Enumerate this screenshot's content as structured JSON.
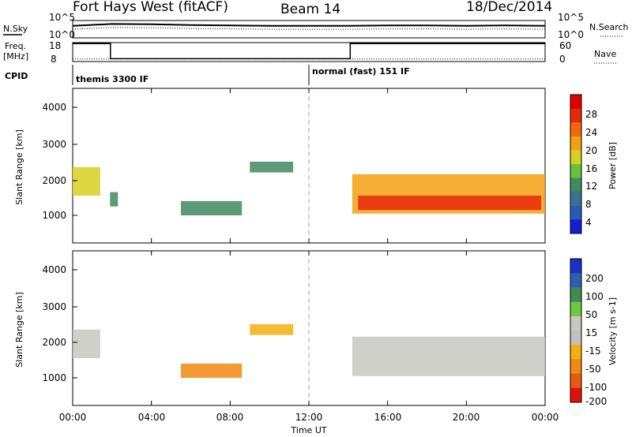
{
  "header": {
    "station": "Fort Hays West (fitACF)",
    "beam": "Beam 14",
    "date": "18/Dec/2014"
  },
  "noise_panel": {
    "left_label": "N.Sky",
    "left_ticks": [
      "10^5",
      "10^0"
    ],
    "right_ticks": [
      "10^5",
      "10^0"
    ],
    "right_label": "N.Search"
  },
  "freq_panel": {
    "left_label_1": "Freq.",
    "left_label_2": "[MHz]",
    "left_ticks": [
      "18",
      "8"
    ],
    "right_ticks": [
      "60",
      "0"
    ],
    "right_label": "Nave"
  },
  "cpid": {
    "label": "CPID",
    "programs": [
      {
        "name": "themis 3300 IF",
        "start": 0
      },
      {
        "name": "normal (fast) 151 IF",
        "start": 12
      }
    ]
  },
  "colors": {
    "power_scale": [
      "#1020d0",
      "#2a5ab8",
      "#3a7090",
      "#3f8a5e",
      "#67c23a",
      "#d7d020",
      "#f4a012",
      "#f06a0c",
      "#e8280a",
      "#e00000"
    ],
    "velocity_scale": [
      "#1a2fc4",
      "#2f5fb0",
      "#3f8a55",
      "#6cc840",
      "#c8c8c0",
      "#c0c0bc",
      "#f5b010",
      "#f08a10",
      "#e85a10",
      "#e01010"
    ],
    "ground_scatter": "#c8c8c2"
  },
  "chart_data": [
    {
      "type": "line",
      "title": "N.Sky / N.Search",
      "x": [
        0,
        2,
        4,
        6,
        8,
        10,
        12,
        14,
        16,
        18,
        20,
        22,
        24
      ],
      "series": [
        {
          "name": "N.Sky",
          "values": [
            3000,
            10000,
            8000,
            5000,
            4000,
            3000,
            3000,
            3000,
            4000,
            4000,
            3000,
            4000,
            3000
          ]
        },
        {
          "name": "N.Search",
          "values": [
            300,
            1000,
            800,
            500,
            400,
            300,
            300,
            300,
            400,
            400,
            300,
            400,
            300
          ]
        }
      ],
      "ylabel": "N.Sky",
      "y2label": "N.Search",
      "ylim": [
        1,
        100000
      ],
      "xlim": [
        0,
        24
      ]
    },
    {
      "type": "line",
      "title": "Freq. / Nave",
      "series": [
        {
          "name": "Freq.",
          "x": [
            0,
            1.92,
            1.92,
            14.1,
            14.1,
            24
          ],
          "values": [
            17.5,
            17.5,
            9.5,
            9.5,
            17.5,
            17.5
          ]
        },
        {
          "name": "Nave",
          "x": [
            0,
            24
          ],
          "values": [
            8,
            8
          ]
        }
      ],
      "ylabel": "[MHz]",
      "y2label": "Nave",
      "ylim": [
        8,
        18
      ],
      "y2lim": [
        0,
        60
      ],
      "xlim": [
        0,
        24
      ]
    },
    {
      "type": "heatmap",
      "title": "Power",
      "ylabel": "Slant Range [km]",
      "colorbar_label": "Power [dB]",
      "colorbar_ticks": [
        "28",
        "24",
        "20",
        "16",
        "12",
        "8",
        "4"
      ],
      "ylim": [
        180,
        4500
      ],
      "xlim": [
        0,
        24
      ],
      "yticks": [
        "4000",
        "3000",
        "2000",
        "1000"
      ],
      "regions": [
        {
          "x_start": 0.0,
          "x_end": 1.4,
          "y_low": 1500,
          "y_high": 2300,
          "value": 16
        },
        {
          "x_start": 1.9,
          "x_end": 2.3,
          "y_low": 1200,
          "y_high": 1600,
          "value": 10
        },
        {
          "x_start": 5.5,
          "x_end": 8.6,
          "y_low": 950,
          "y_high": 1350,
          "value": 10
        },
        {
          "x_start": 9.0,
          "x_end": 11.2,
          "y_low": 2150,
          "y_high": 2450,
          "value": 10
        },
        {
          "x_start": 14.2,
          "x_end": 24.0,
          "y_low": 1000,
          "y_high": 2100,
          "value": 20
        },
        {
          "x_start": 14.5,
          "x_end": 23.8,
          "y_low": 1100,
          "y_high": 1500,
          "value": 26
        }
      ]
    },
    {
      "type": "heatmap",
      "title": "Velocity",
      "ylabel": "Slant Range [km]",
      "colorbar_label": "Velocity [m s-1]",
      "colorbar_ticks": [
        "200",
        "100",
        "50",
        "15",
        "-15",
        "-50",
        "-100",
        "-200"
      ],
      "ylim": [
        180,
        4500
      ],
      "xlim": [
        0,
        24
      ],
      "yticks": [
        "4000",
        "3000",
        "2000",
        "1000"
      ],
      "regions": [
        {
          "x_start": 0.0,
          "x_end": 1.4,
          "y_low": 1500,
          "y_high": 2300,
          "value": 0
        },
        {
          "x_start": 5.5,
          "x_end": 8.6,
          "y_low": 950,
          "y_high": 1350,
          "value": -60
        },
        {
          "x_start": 9.0,
          "x_end": 11.2,
          "y_low": 2150,
          "y_high": 2450,
          "value": -30
        },
        {
          "x_start": 14.2,
          "x_end": 24.0,
          "y_low": 1000,
          "y_high": 2100,
          "value": 0
        }
      ]
    }
  ],
  "xaxis": {
    "ticks": [
      "00:00",
      "04:00",
      "08:00",
      "12:00",
      "16:00",
      "20:00",
      "00:00"
    ],
    "label": "Time UT"
  }
}
